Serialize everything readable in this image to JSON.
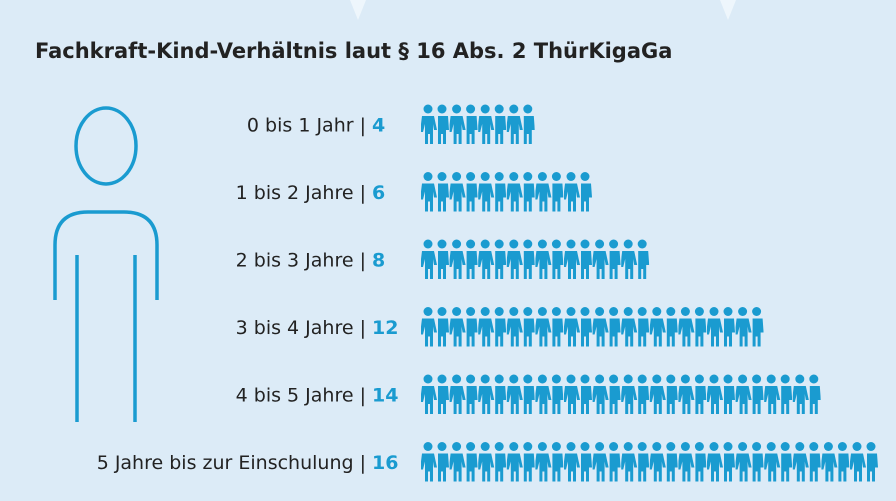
{
  "chart_data": {
    "type": "pictogram",
    "title": "Fachkraft-Kind-Verhältnis laut § 16 Abs. 2 ThürKigaGa",
    "categories": [
      "0 bis 1 Jahr |",
      "1 bis 2 Jahre |",
      "2 bis 3 Jahre |",
      "3 bis 4 Jahre |",
      "4 bis 5 Jahre |",
      "5 Jahre bis zur Einschulung |"
    ],
    "values": [
      4,
      6,
      8,
      12,
      14,
      16
    ],
    "color": "#1a9bd0"
  }
}
